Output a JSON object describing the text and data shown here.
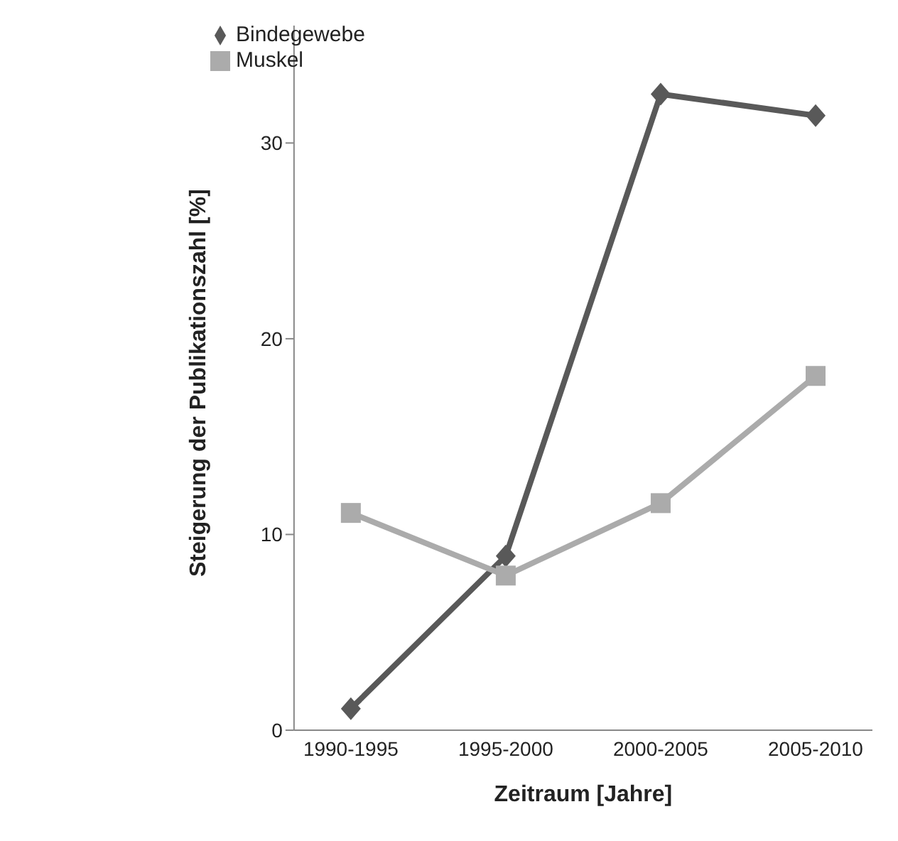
{
  "chart_data": {
    "type": "line",
    "xlabel": "Zeitraum [Jahre]",
    "ylabel": "Steigerung der Publikationszahl [%]",
    "categories": [
      "1990-1995",
      "1995-2000",
      "2000-2005",
      "2005-2010"
    ],
    "series": [
      {
        "name": "Bindegewebe",
        "color": "#595959",
        "marker": "diamond",
        "values": [
          1.1,
          8.9,
          32.5,
          31.4
        ]
      },
      {
        "name": "Muskel",
        "color": "#ababab",
        "marker": "square",
        "values": [
          11.1,
          7.9,
          11.6,
          18.1
        ]
      }
    ],
    "ylim": [
      0,
      36
    ],
    "yticks": [
      0,
      10,
      20,
      30
    ],
    "grid": false,
    "legend": "top left",
    "line_style": "solid"
  }
}
